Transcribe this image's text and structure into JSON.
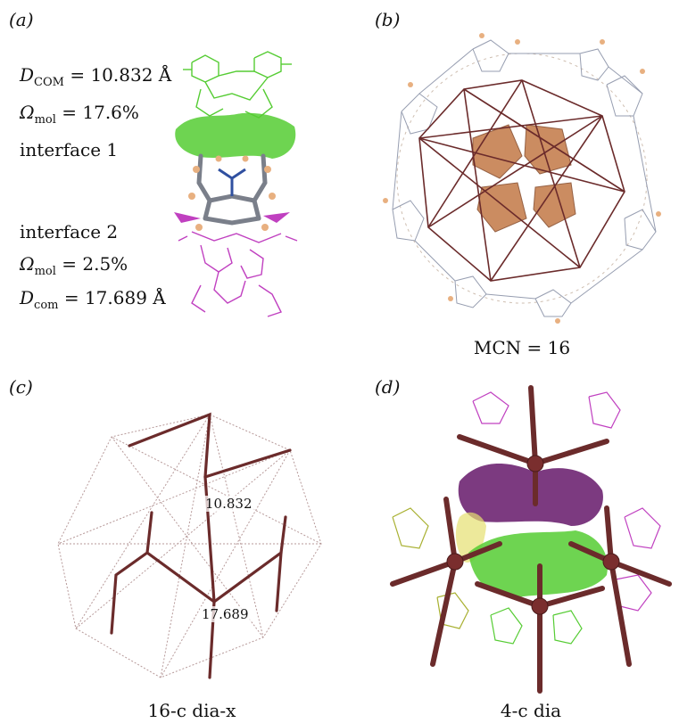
{
  "panels": {
    "a": {
      "label": "(a)",
      "top_eq": {
        "var": "D",
        "sub": "COM",
        "rest": " = 10.832 Å"
      },
      "top_omega": {
        "var": "Ω",
        "sub": "mol",
        "rest": " = 17.6%"
      },
      "interface1": "interface 1",
      "interface2": "interface 2",
      "bottom_omega": {
        "var": "Ω",
        "sub": "mol",
        "rest": " = 2.5%"
      },
      "bottom_eq": {
        "var": "D",
        "sub": "com",
        "rest": " = 17.689 Å"
      }
    },
    "b": {
      "label": "(b)",
      "caption": "MCN = 16"
    },
    "c": {
      "label": "(c)",
      "distance_upper": "10.832",
      "distance_lower": "17.689",
      "caption": "16-c dia-x"
    },
    "d": {
      "label": "(d)",
      "caption": "4-c dia"
    }
  },
  "colors": {
    "green": "#55cc33",
    "magenta": "#c040c0",
    "olive": "#a8b030",
    "purple": "#6a1f6e",
    "copper": "#c68050",
    "bond": "#6b2b2b",
    "grey": "#7a7f8a",
    "blue": "#3050a0"
  }
}
